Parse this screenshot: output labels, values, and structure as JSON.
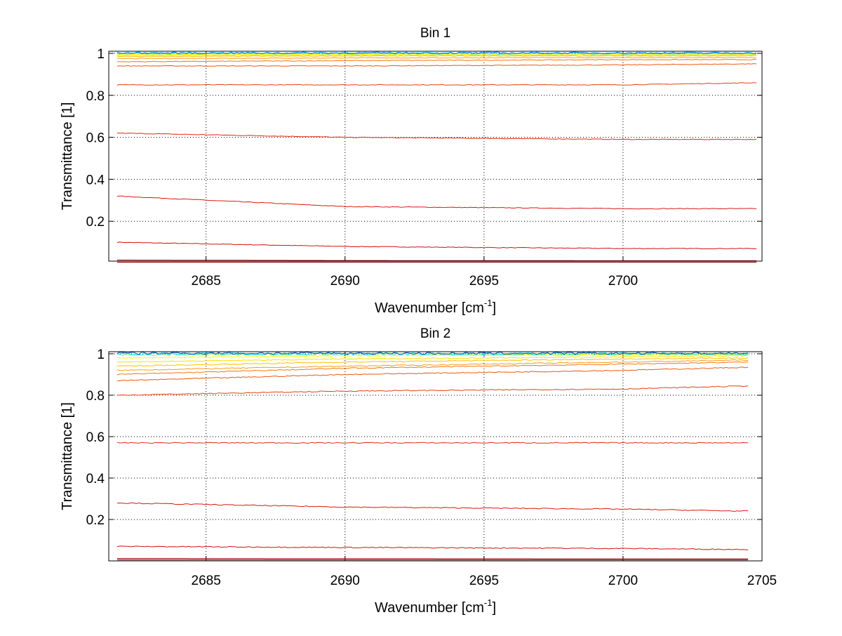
{
  "chart_data": [
    {
      "type": "line",
      "title": "Bin 1",
      "xlabel": "Wavenumber [cm",
      "xlabel_sup": "-1",
      "xlabel_end": "]",
      "ylabel": "Transmittance [1]",
      "xlim": [
        2681.5,
        2705
      ],
      "ylim": [
        0.01,
        1.01
      ],
      "xticks": [
        "2685",
        "2690",
        "2695",
        "2700"
      ],
      "xtick_values": [
        2685,
        2690,
        2695,
        2700
      ],
      "yticks": [
        "0.2",
        "0.4",
        "0.6",
        "0.8",
        "1"
      ],
      "ytick_values": [
        0.2,
        0.4,
        0.6,
        0.8,
        1
      ],
      "grid": true,
      "x": [
        2681.8,
        2690,
        2700,
        2704.8
      ],
      "series": [
        {
          "values": [
            0.005,
            0.005,
            0.005,
            0.005
          ],
          "color": "#800000"
        },
        {
          "values": [
            0.015,
            0.013,
            0.012,
            0.012
          ],
          "color": "#a00000"
        },
        {
          "values": [
            0.1,
            0.08,
            0.07,
            0.07
          ],
          "color": "#d01010"
        },
        {
          "values": [
            0.32,
            0.27,
            0.26,
            0.26
          ],
          "color": "#d81a10"
        },
        {
          "values": [
            0.62,
            0.6,
            0.59,
            0.59
          ],
          "color": "#e02a10"
        },
        {
          "values": [
            0.85,
            0.85,
            0.85,
            0.86
          ],
          "color": "#e44010"
        },
        {
          "values": [
            0.94,
            0.94,
            0.945,
            0.95
          ],
          "color": "#ea5a10"
        },
        {
          "values": [
            0.96,
            0.965,
            0.97,
            0.97
          ],
          "color": "#f07810"
        },
        {
          "values": [
            0.975,
            0.978,
            0.98,
            0.98
          ],
          "color": "#f89a20"
        },
        {
          "values": [
            0.985,
            0.987,
            0.988,
            0.988
          ],
          "color": "#ffc000"
        },
        {
          "values": [
            0.99,
            0.992,
            0.993,
            0.993
          ],
          "color": "#ffe000"
        },
        {
          "values": [
            0.995,
            0.996,
            0.997,
            0.997
          ],
          "color": "#ffff00"
        },
        {
          "values": [
            0.999,
            0.999,
            0.999,
            0.999
          ],
          "color": "#90ff70"
        },
        {
          "values": [
            1.0,
            1.0,
            1.0,
            1.0
          ],
          "color": "#00e0ff"
        },
        {
          "values": [
            1.002,
            1.002,
            1.002,
            1.002
          ],
          "color": "#0070d0"
        }
      ]
    },
    {
      "type": "line",
      "title": "Bin 2",
      "xlabel": "Wavenumber [cm",
      "xlabel_sup": "-1",
      "xlabel_end": "]",
      "ylabel": "Transmittance [1]",
      "xlim": [
        2681.5,
        2705
      ],
      "ylim": [
        0,
        1.01
      ],
      "xticks": [
        "2685",
        "2690",
        "2695",
        "2700",
        "2705"
      ],
      "xtick_values": [
        2685,
        2690,
        2695,
        2700,
        2705
      ],
      "yticks": [
        "0.2",
        "0.4",
        "0.6",
        "0.8",
        "1"
      ],
      "ytick_values": [
        0.2,
        0.4,
        0.6,
        0.8,
        1
      ],
      "grid": true,
      "x": [
        2681.8,
        2690,
        2700,
        2704.5
      ],
      "series": [
        {
          "values": [
            0.005,
            0.005,
            0.005,
            0.005
          ],
          "color": "#800000"
        },
        {
          "values": [
            0.012,
            0.011,
            0.01,
            0.01
          ],
          "color": "#a00000"
        },
        {
          "values": [
            0.07,
            0.065,
            0.06,
            0.055
          ],
          "color": "#d01010"
        },
        {
          "values": [
            0.28,
            0.26,
            0.25,
            0.24
          ],
          "color": "#d81a10"
        },
        {
          "values": [
            0.57,
            0.57,
            0.57,
            0.57
          ],
          "color": "#e02a10"
        },
        {
          "values": [
            0.8,
            0.82,
            0.83,
            0.845
          ],
          "color": "#e44010"
        },
        {
          "values": [
            0.87,
            0.9,
            0.92,
            0.935
          ],
          "color": "#ea5a10"
        },
        {
          "values": [
            0.9,
            0.93,
            0.95,
            0.96
          ],
          "color": "#f07810"
        },
        {
          "values": [
            0.92,
            0.94,
            0.96,
            0.97
          ],
          "color": "#f89a20"
        },
        {
          "values": [
            0.94,
            0.96,
            0.975,
            0.98
          ],
          "color": "#ffc000"
        },
        {
          "values": [
            0.96,
            0.975,
            0.985,
            0.99
          ],
          "color": "#ffe000"
        },
        {
          "values": [
            0.98,
            0.99,
            0.995,
            0.995
          ],
          "color": "#ffff00"
        },
        {
          "values": [
            0.995,
            0.998,
            0.999,
            0.999
          ],
          "color": "#90ff70"
        },
        {
          "values": [
            1.0,
            1.0,
            1.0,
            1.0
          ],
          "color": "#00e0ff"
        },
        {
          "values": [
            1.003,
            1.002,
            1.002,
            1.002
          ],
          "color": "#0050b0"
        }
      ]
    }
  ]
}
